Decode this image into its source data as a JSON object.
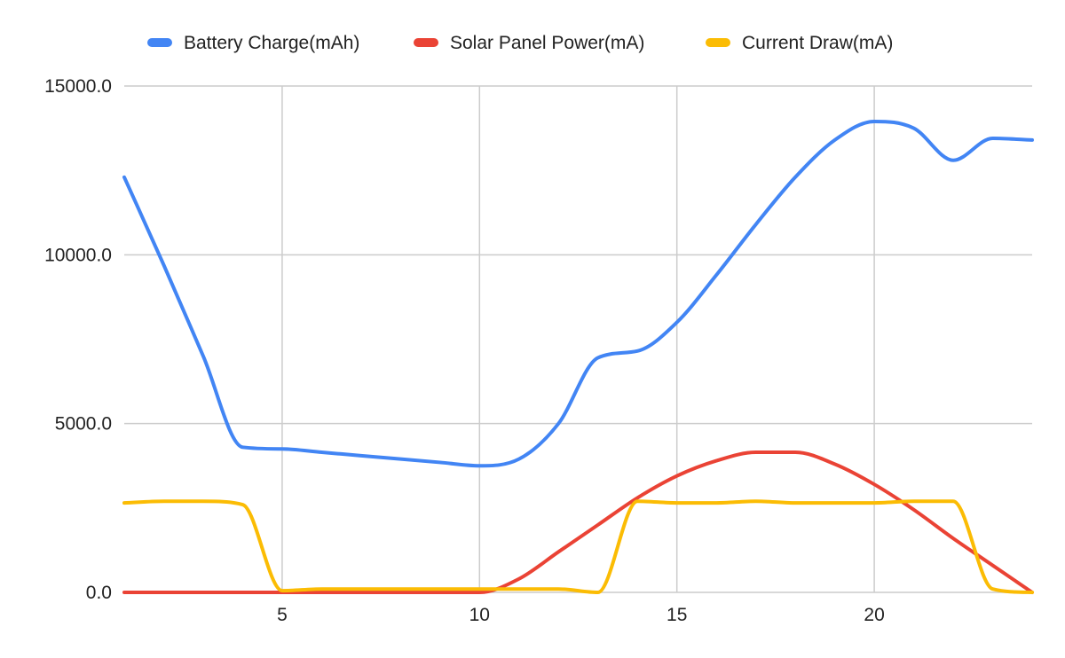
{
  "chart_data": {
    "type": "line",
    "title": "",
    "xlabel": "",
    "ylabel": "",
    "xlim": [
      1,
      24
    ],
    "ylim": [
      0,
      15000
    ],
    "x_ticks": [
      5,
      10,
      15,
      20
    ],
    "y_ticks": [
      0,
      5000,
      10000,
      15000
    ],
    "y_tick_labels": [
      "0.0",
      "5000.0",
      "10000.0",
      "15000.0"
    ],
    "grid": true,
    "legend_position": "top",
    "x": [
      1,
      2,
      3,
      4,
      5,
      6,
      7,
      8,
      9,
      10,
      11,
      12,
      13,
      14,
      15,
      16,
      17,
      18,
      19,
      20,
      21,
      22,
      23,
      24
    ],
    "series": [
      {
        "name": "Battery Charge(mAh)",
        "color": "#4285f4",
        "values": [
          12300,
          9700,
          7000,
          4300,
          4250,
          4150,
          4050,
          3950,
          3850,
          3750,
          3950,
          5000,
          6950,
          7150,
          8000,
          9400,
          10900,
          12300,
          13400,
          13950,
          13750,
          12800,
          13450,
          13400
        ]
      },
      {
        "name": "Solar Panel Power(mA)",
        "color": "#ea4335",
        "values": [
          0,
          0,
          0,
          0,
          0,
          0,
          0,
          0,
          0,
          0,
          400,
          1200,
          2000,
          2800,
          3450,
          3900,
          4150,
          4150,
          3800,
          3200,
          2450,
          1600,
          800,
          0
        ]
      },
      {
        "name": "Current Draw(mA)",
        "color": "#fbbc04",
        "values": [
          2650,
          2700,
          2700,
          2600,
          50,
          100,
          100,
          100,
          100,
          100,
          100,
          100,
          0,
          2700,
          2650,
          2650,
          2700,
          2650,
          2650,
          2650,
          2700,
          2700,
          100,
          0
        ]
      }
    ]
  }
}
